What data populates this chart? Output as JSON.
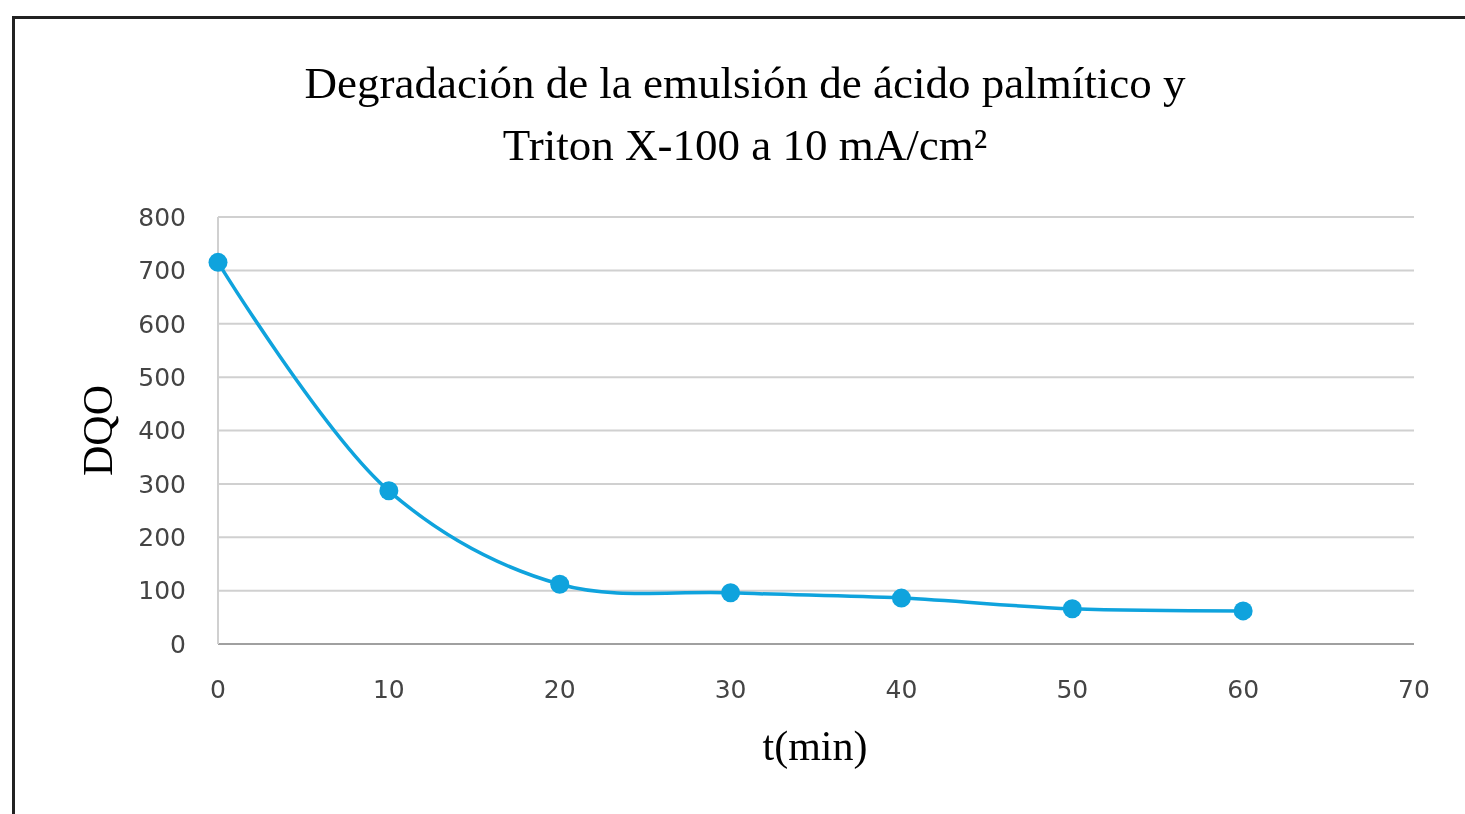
{
  "chart_data": {
    "type": "line",
    "title": "Degradación de la emulsión de ácido palmítico y Triton X-100 a 10 mA/cm²",
    "xlabel": "t(min)",
    "ylabel": "DQO",
    "x": [
      0,
      10,
      20,
      30,
      40,
      50,
      60
    ],
    "series": [
      {
        "color": "#0fa3dd",
        "values": [
          715,
          287,
          112,
          96,
          86,
          66,
          62
        ]
      }
    ],
    "xlim": [
      0,
      70
    ],
    "xticks": [
      0,
      10,
      20,
      30,
      40,
      50,
      60,
      70
    ],
    "ylim": [
      0,
      800
    ],
    "yticks": [
      0,
      100,
      200,
      300,
      400,
      500,
      600,
      700,
      800
    ],
    "grid": "y",
    "marker": "circle",
    "line_style": "solid"
  }
}
